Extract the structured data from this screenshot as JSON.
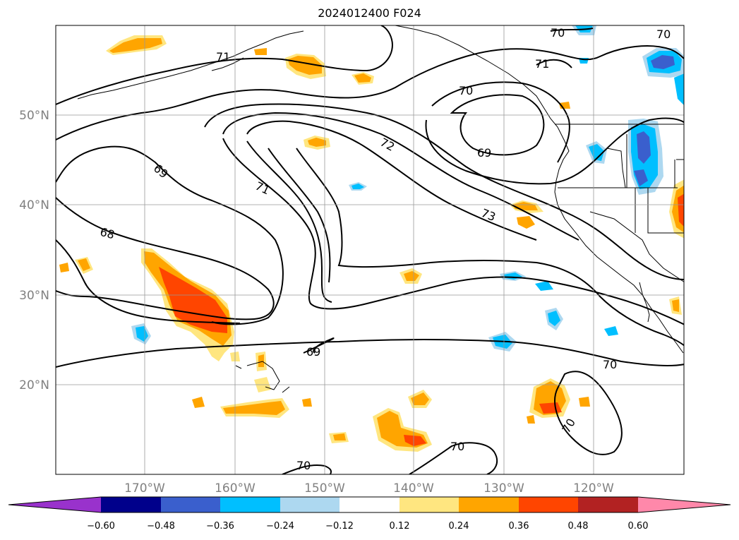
{
  "title": "2024012400 F024",
  "lon_labels": [
    "170°W",
    "160°W",
    "150°W",
    "140°W",
    "130°W",
    "120°W"
  ],
  "lat_labels": [
    "50°N",
    "40°N",
    "30°N",
    "20°N"
  ],
  "colorbar": {
    "ticks": [
      "−0.60",
      "−0.48",
      "−0.36",
      "−0.24",
      "−0.12",
      "0.12",
      "0.24",
      "0.36",
      "0.48",
      "0.60"
    ],
    "colors": [
      "#9932cc",
      "#00008b",
      "#3a5fcd",
      "#00bfff",
      "#add8f0",
      "#ffffff",
      "#ffe680",
      "#ffa500",
      "#ff4500",
      "#b22222",
      "#ff88aa"
    ]
  },
  "contour_labels": [
    "70",
    "71",
    "70",
    "70",
    "71",
    "72",
    "69",
    "69",
    "71",
    "73",
    "68",
    "69",
    "70",
    "70",
    "70",
    "70"
  ]
}
